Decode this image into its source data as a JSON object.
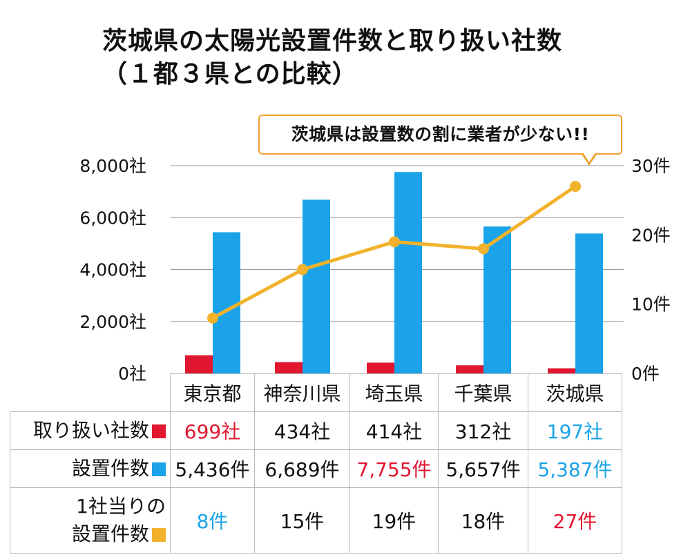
{
  "title_line1": "茨城県の太陽光設置件数と取り扱い社数",
  "title_line2": "（１都３県との比較）",
  "callout": "茨城県は設置数の割に業者が少ない!!",
  "colors": {
    "companies": "#e0172f",
    "installations": "#1aa3e8",
    "per_company": "#f2b22c",
    "text_default": "#111111"
  },
  "chart_data": {
    "type": "bar",
    "categories": [
      "東京都",
      "神奈川県",
      "埼玉県",
      "千葉県",
      "茨城県"
    ],
    "series": [
      {
        "name": "取り扱い社数",
        "axis": "left",
        "type": "bar",
        "values": [
          699,
          434,
          414,
          312,
          197
        ],
        "color": "#e0172f"
      },
      {
        "name": "設置件数",
        "axis": "left",
        "type": "bar",
        "values": [
          5436,
          6689,
          7755,
          5657,
          5387
        ],
        "color": "#1aa3e8"
      },
      {
        "name": "1社当りの設置件数",
        "axis": "right",
        "type": "line",
        "values": [
          8,
          15,
          19,
          18,
          27
        ],
        "color": "#f2b22c"
      }
    ],
    "left_axis": {
      "ylim": [
        0,
        8000
      ],
      "ticks": [
        0,
        2000,
        4000,
        6000,
        8000
      ],
      "tick_labels": [
        "0社",
        "2,000社",
        "4,000社",
        "6,000社",
        "8,000社"
      ]
    },
    "right_axis": {
      "ylim": [
        0,
        30
      ],
      "ticks": [
        0,
        10,
        20,
        30
      ],
      "tick_labels": [
        "0件",
        "10件",
        "20件",
        "30件"
      ]
    },
    "grid": true,
    "legend": "table below chart"
  },
  "table": {
    "headers": [
      "東京都",
      "神奈川県",
      "埼玉県",
      "千葉県",
      "茨城県"
    ],
    "rows": [
      {
        "label": "取り扱い社数",
        "swatch_color": "#e0172f",
        "cells": [
          {
            "text": "699社",
            "color": "#e0172f"
          },
          {
            "text": "434社",
            "color": "#111111"
          },
          {
            "text": "414社",
            "color": "#111111"
          },
          {
            "text": "312社",
            "color": "#111111"
          },
          {
            "text": "197社",
            "color": "#1aa3e8"
          }
        ]
      },
      {
        "label": "設置件数",
        "swatch_color": "#1aa3e8",
        "cells": [
          {
            "text": "5,436件",
            "color": "#111111"
          },
          {
            "text": "6,689件",
            "color": "#111111"
          },
          {
            "text": "7,755件",
            "color": "#e0172f"
          },
          {
            "text": "5,657件",
            "color": "#111111"
          },
          {
            "text": "5,387件",
            "color": "#1aa3e8"
          }
        ]
      },
      {
        "label_line1": "1社当りの",
        "label_line2": "設置件数",
        "swatch_color": "#f2b22c",
        "cells": [
          {
            "text": "8件",
            "color": "#1aa3e8"
          },
          {
            "text": "15件",
            "color": "#111111"
          },
          {
            "text": "19件",
            "color": "#111111"
          },
          {
            "text": "18件",
            "color": "#111111"
          },
          {
            "text": "27件",
            "color": "#e0172f"
          }
        ]
      }
    ]
  }
}
